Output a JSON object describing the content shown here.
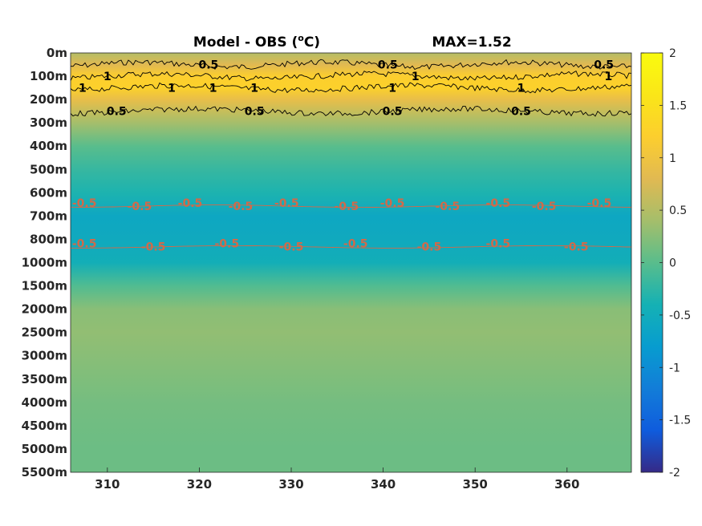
{
  "chart_data": {
    "type": "heatmap",
    "title_left": "Model - OBS (",
    "title_unit_sup": "o",
    "title_unit_tail": "C)",
    "title_right": "MAX=1.52",
    "x": {
      "ticks": [
        310,
        320,
        330,
        340,
        350,
        360
      ],
      "lim": [
        306,
        367
      ]
    },
    "y_depth_labels": [
      "0m",
      "100m",
      "200m",
      "300m",
      "400m",
      "500m",
      "600m",
      "700m",
      "800m",
      "1000m",
      "1500m",
      "2000m",
      "2500m",
      "3000m",
      "3500m",
      "4000m",
      "4500m",
      "5000m",
      "5500m"
    ],
    "profile_celsius": [
      {
        "depth": "0m",
        "value": 0.5
      },
      {
        "depth": "50m",
        "value": 0.8
      },
      {
        "depth": "100m",
        "value": 1.2
      },
      {
        "depth": "150m",
        "value": 1.25
      },
      {
        "depth": "200m",
        "value": 0.9
      },
      {
        "depth": "300m",
        "value": 0.4
      },
      {
        "depth": "400m",
        "value": 0.0
      },
      {
        "depth": "500m",
        "value": -0.2
      },
      {
        "depth": "600m",
        "value": -0.35
      },
      {
        "depth": "700m",
        "value": -0.6
      },
      {
        "depth": "800m",
        "value": -0.55
      },
      {
        "depth": "1000m",
        "value": -0.45
      },
      {
        "depth": "1500m",
        "value": -0.05
      },
      {
        "depth": "2000m",
        "value": 0.25
      },
      {
        "depth": "2500m",
        "value": 0.3
      },
      {
        "depth": "3000m",
        "value": 0.25
      },
      {
        "depth": "3500m",
        "value": 0.2
      },
      {
        "depth": "4000m",
        "value": 0.15
      },
      {
        "depth": "4500m",
        "value": 0.12
      },
      {
        "depth": "5000m",
        "value": 0.1
      },
      {
        "depth": "5500m",
        "value": 0.1
      }
    ],
    "contours": [
      {
        "level": 0.5,
        "depth_band": "50m",
        "labels": [
          {
            "text": "0.5",
            "x": 321
          },
          {
            "text": "0.5",
            "x": 340.5
          },
          {
            "text": "0.5",
            "x": 364
          }
        ]
      },
      {
        "level": 1,
        "depth_band": "100m",
        "labels": [
          {
            "text": "1",
            "x": 310
          },
          {
            "text": "1",
            "x": 343.5
          },
          {
            "text": "1",
            "x": 364.5
          }
        ]
      },
      {
        "level": 1,
        "depth_band": "150m",
        "labels": [
          {
            "text": "1",
            "x": 307.3
          },
          {
            "text": "1",
            "x": 317
          },
          {
            "text": "1",
            "x": 321.5
          },
          {
            "text": "1",
            "x": 326
          },
          {
            "text": "1",
            "x": 341
          },
          {
            "text": "1",
            "x": 355
          }
        ]
      },
      {
        "level": 0.5,
        "depth_band": "250m",
        "labels": [
          {
            "text": "0.5",
            "x": 311
          },
          {
            "text": "0.5",
            "x": 326
          },
          {
            "text": "0.5",
            "x": 341
          },
          {
            "text": "0.5",
            "x": 355
          }
        ]
      },
      {
        "level": -0.5,
        "depth_band": "650m",
        "labels": [
          {
            "text": "-0.5",
            "x": 307.5
          },
          {
            "text": "-0.5",
            "x": 313.5
          },
          {
            "text": "-0.5",
            "x": 319
          },
          {
            "text": "-0.5",
            "x": 324.5
          },
          {
            "text": "-0.5",
            "x": 329.5
          },
          {
            "text": "-0.5",
            "x": 336
          },
          {
            "text": "-0.5",
            "x": 341
          },
          {
            "text": "-0.5",
            "x": 347
          },
          {
            "text": "-0.5",
            "x": 352.5
          },
          {
            "text": "-0.5",
            "x": 357.5
          },
          {
            "text": "-0.5",
            "x": 363.5
          }
        ]
      },
      {
        "level": -0.5,
        "depth_band": "850m",
        "labels": [
          {
            "text": "-0.5",
            "x": 307.5
          },
          {
            "text": "-0.5",
            "x": 315
          },
          {
            "text": "-0.5",
            "x": 323
          },
          {
            "text": "-0.5",
            "x": 330
          },
          {
            "text": "-0.5",
            "x": 337
          },
          {
            "text": "-0.5",
            "x": 345
          },
          {
            "text": "-0.5",
            "x": 352.5
          },
          {
            "text": "-0.5",
            "x": 361
          }
        ]
      }
    ],
    "colorbar": {
      "min": -2,
      "max": 2,
      "ticks": [
        2,
        1.5,
        1,
        0.5,
        0,
        -0.5,
        -1,
        -1.5,
        -2
      ],
      "colormap": "parula"
    },
    "colors": {
      "positive_contour": "#000000",
      "negative_contour": "#d06a4a"
    }
  }
}
